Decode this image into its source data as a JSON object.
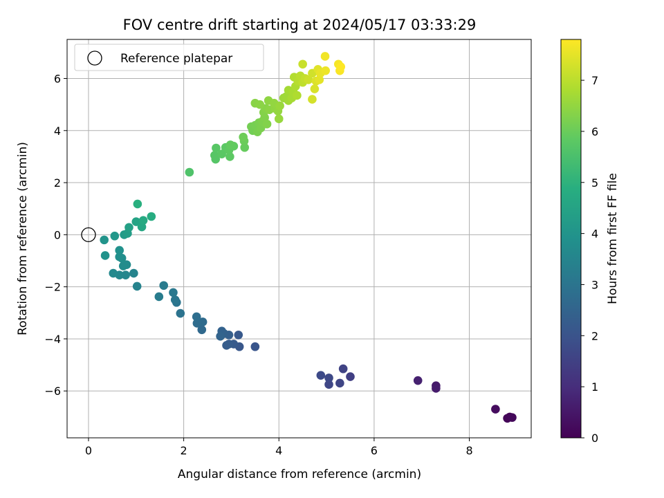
{
  "chart_data": {
    "type": "scatter",
    "title": "FOV centre drift starting at 2024/05/17 03:33:29",
    "xlabel": "Angular distance from reference (arcmin)",
    "ylabel": "Rotation from reference (arcmin)",
    "xlim": [
      -0.45,
      9.3
    ],
    "ylim": [
      -7.8,
      7.5
    ],
    "xticks": [
      0,
      2,
      4,
      6,
      8
    ],
    "yticks": [
      -6,
      -4,
      -2,
      0,
      2,
      4,
      6
    ],
    "grid": true,
    "legend": {
      "position": "top-left",
      "entries": [
        "Reference platepar"
      ]
    },
    "reference_point": {
      "x": 0,
      "y": 0
    },
    "colorbar": {
      "label": "Hours from first FF file",
      "min": 0,
      "max": 7.8,
      "ticks": [
        0,
        1,
        2,
        3,
        4,
        5,
        6,
        7
      ],
      "colormap": "viridis"
    },
    "points": [
      {
        "x": 8.85,
        "y": -7.0,
        "h": 0.05
      },
      {
        "x": 8.8,
        "y": -7.05,
        "h": 0.1
      },
      {
        "x": 8.9,
        "y": -7.02,
        "h": 0.15
      },
      {
        "x": 8.55,
        "y": -6.7,
        "h": 0.25
      },
      {
        "x": 7.3,
        "y": -5.8,
        "h": 0.55
      },
      {
        "x": 7.3,
        "y": -5.9,
        "h": 0.6
      },
      {
        "x": 6.92,
        "y": -5.6,
        "h": 0.7
      },
      {
        "x": 5.5,
        "y": -5.45,
        "h": 1.45
      },
      {
        "x": 5.35,
        "y": -5.15,
        "h": 1.55
      },
      {
        "x": 5.28,
        "y": -5.7,
        "h": 1.6
      },
      {
        "x": 5.05,
        "y": -5.75,
        "h": 1.65
      },
      {
        "x": 5.05,
        "y": -5.5,
        "h": 1.7
      },
      {
        "x": 4.88,
        "y": -5.4,
        "h": 1.75
      },
      {
        "x": 3.5,
        "y": -4.3,
        "h": 2.05
      },
      {
        "x": 3.17,
        "y": -4.3,
        "h": 2.1
      },
      {
        "x": 3.15,
        "y": -3.85,
        "h": 2.15
      },
      {
        "x": 3.05,
        "y": -4.2,
        "h": 2.2
      },
      {
        "x": 2.95,
        "y": -4.2,
        "h": 2.25
      },
      {
        "x": 2.9,
        "y": -4.25,
        "h": 2.3
      },
      {
        "x": 2.95,
        "y": -3.85,
        "h": 2.35
      },
      {
        "x": 2.85,
        "y": -3.8,
        "h": 2.4
      },
      {
        "x": 2.8,
        "y": -3.7,
        "h": 2.45
      },
      {
        "x": 2.77,
        "y": -3.9,
        "h": 2.5
      },
      {
        "x": 2.38,
        "y": -3.65,
        "h": 2.65
      },
      {
        "x": 2.4,
        "y": -3.35,
        "h": 2.7
      },
      {
        "x": 2.28,
        "y": -3.4,
        "h": 2.75
      },
      {
        "x": 2.27,
        "y": -3.15,
        "h": 2.8
      },
      {
        "x": 1.93,
        "y": -3.02,
        "h": 2.95
      },
      {
        "x": 1.85,
        "y": -2.6,
        "h": 3.0
      },
      {
        "x": 1.82,
        "y": -2.5,
        "h": 3.05
      },
      {
        "x": 1.78,
        "y": -2.22,
        "h": 3.1
      },
      {
        "x": 1.58,
        "y": -1.95,
        "h": 3.2
      },
      {
        "x": 1.48,
        "y": -2.38,
        "h": 3.25
      },
      {
        "x": 1.02,
        "y": -1.98,
        "h": 3.45
      },
      {
        "x": 0.95,
        "y": -1.48,
        "h": 3.5
      },
      {
        "x": 0.78,
        "y": -1.55,
        "h": 3.55
      },
      {
        "x": 0.65,
        "y": -1.55,
        "h": 3.6
      },
      {
        "x": 0.52,
        "y": -1.48,
        "h": 3.65
      },
      {
        "x": 0.8,
        "y": -1.15,
        "h": 3.7
      },
      {
        "x": 0.73,
        "y": -1.2,
        "h": 3.75
      },
      {
        "x": 0.7,
        "y": -0.9,
        "h": 3.8
      },
      {
        "x": 0.65,
        "y": -0.85,
        "h": 3.85
      },
      {
        "x": 0.65,
        "y": -0.6,
        "h": 3.9
      },
      {
        "x": 0.35,
        "y": -0.8,
        "h": 3.95
      },
      {
        "x": 0.33,
        "y": -0.2,
        "h": 4.0
      },
      {
        "x": 0.55,
        "y": -0.05,
        "h": 4.1
      },
      {
        "x": 0.75,
        "y": 0.0,
        "h": 4.2
      },
      {
        "x": 0.82,
        "y": 0.05,
        "h": 4.3
      },
      {
        "x": 0.85,
        "y": 0.28,
        "h": 4.4
      },
      {
        "x": 1.0,
        "y": 0.5,
        "h": 4.5
      },
      {
        "x": 1.12,
        "y": 0.3,
        "h": 4.6
      },
      {
        "x": 1.15,
        "y": 0.55,
        "h": 4.7
      },
      {
        "x": 1.32,
        "y": 0.7,
        "h": 4.8
      },
      {
        "x": 1.03,
        "y": 1.18,
        "h": 4.9
      },
      {
        "x": 2.12,
        "y": 2.4,
        "h": 5.6
      },
      {
        "x": 2.67,
        "y": 2.9,
        "h": 5.7
      },
      {
        "x": 2.65,
        "y": 3.05,
        "h": 5.72
      },
      {
        "x": 2.68,
        "y": 3.33,
        "h": 5.75
      },
      {
        "x": 2.8,
        "y": 3.1,
        "h": 5.78
      },
      {
        "x": 2.88,
        "y": 3.35,
        "h": 5.8
      },
      {
        "x": 2.97,
        "y": 3.0,
        "h": 5.83
      },
      {
        "x": 2.95,
        "y": 3.25,
        "h": 5.85
      },
      {
        "x": 3.05,
        "y": 3.4,
        "h": 5.88
      },
      {
        "x": 2.98,
        "y": 3.45,
        "h": 5.9
      },
      {
        "x": 3.28,
        "y": 3.35,
        "h": 5.95
      },
      {
        "x": 3.27,
        "y": 3.6,
        "h": 6.0
      },
      {
        "x": 3.25,
        "y": 3.75,
        "h": 6.05
      },
      {
        "x": 3.45,
        "y": 4.0,
        "h": 6.1
      },
      {
        "x": 3.42,
        "y": 4.15,
        "h": 6.12
      },
      {
        "x": 3.5,
        "y": 4.2,
        "h": 6.15
      },
      {
        "x": 3.55,
        "y": 3.95,
        "h": 6.18
      },
      {
        "x": 3.58,
        "y": 4.3,
        "h": 6.2
      },
      {
        "x": 3.62,
        "y": 4.1,
        "h": 6.22
      },
      {
        "x": 3.65,
        "y": 4.35,
        "h": 6.25
      },
      {
        "x": 3.7,
        "y": 4.5,
        "h": 6.28
      },
      {
        "x": 3.75,
        "y": 4.25,
        "h": 6.3
      },
      {
        "x": 3.68,
        "y": 4.7,
        "h": 6.32
      },
      {
        "x": 3.72,
        "y": 4.85,
        "h": 6.35
      },
      {
        "x": 3.5,
        "y": 5.05,
        "h": 6.38
      },
      {
        "x": 3.6,
        "y": 5.0,
        "h": 6.4
      },
      {
        "x": 3.8,
        "y": 4.8,
        "h": 6.42
      },
      {
        "x": 3.78,
        "y": 5.15,
        "h": 6.45
      },
      {
        "x": 3.92,
        "y": 4.85,
        "h": 6.48
      },
      {
        "x": 3.9,
        "y": 5.05,
        "h": 6.5
      },
      {
        "x": 3.98,
        "y": 4.75,
        "h": 6.52
      },
      {
        "x": 4.0,
        "y": 4.45,
        "h": 6.55
      },
      {
        "x": 4.02,
        "y": 4.95,
        "h": 6.58
      },
      {
        "x": 4.1,
        "y": 5.25,
        "h": 6.62
      },
      {
        "x": 4.15,
        "y": 5.3,
        "h": 6.65
      },
      {
        "x": 4.2,
        "y": 5.15,
        "h": 6.68
      },
      {
        "x": 4.2,
        "y": 5.55,
        "h": 6.72
      },
      {
        "x": 4.27,
        "y": 5.25,
        "h": 6.75
      },
      {
        "x": 4.3,
        "y": 5.5,
        "h": 6.78
      },
      {
        "x": 4.35,
        "y": 5.7,
        "h": 6.82
      },
      {
        "x": 4.38,
        "y": 5.35,
        "h": 6.85
      },
      {
        "x": 4.32,
        "y": 6.05,
        "h": 6.9
      },
      {
        "x": 4.4,
        "y": 5.9,
        "h": 6.95
      },
      {
        "x": 4.45,
        "y": 6.1,
        "h": 7.0
      },
      {
        "x": 4.5,
        "y": 5.85,
        "h": 7.05
      },
      {
        "x": 4.55,
        "y": 6.0,
        "h": 7.1
      },
      {
        "x": 4.5,
        "y": 6.55,
        "h": 7.15
      },
      {
        "x": 4.62,
        "y": 5.95,
        "h": 7.2
      },
      {
        "x": 4.7,
        "y": 6.2,
        "h": 7.25
      },
      {
        "x": 4.7,
        "y": 5.2,
        "h": 7.3
      },
      {
        "x": 4.75,
        "y": 5.6,
        "h": 7.35
      },
      {
        "x": 4.78,
        "y": 5.9,
        "h": 7.4
      },
      {
        "x": 4.82,
        "y": 6.35,
        "h": 7.45
      },
      {
        "x": 4.85,
        "y": 5.95,
        "h": 7.5
      },
      {
        "x": 4.87,
        "y": 6.2,
        "h": 7.55
      },
      {
        "x": 4.98,
        "y": 6.3,
        "h": 7.6
      },
      {
        "x": 4.97,
        "y": 6.85,
        "h": 7.65
      },
      {
        "x": 5.25,
        "y": 6.55,
        "h": 7.7
      },
      {
        "x": 5.28,
        "y": 6.3,
        "h": 7.75
      },
      {
        "x": 5.3,
        "y": 6.45,
        "h": 7.8
      }
    ]
  }
}
